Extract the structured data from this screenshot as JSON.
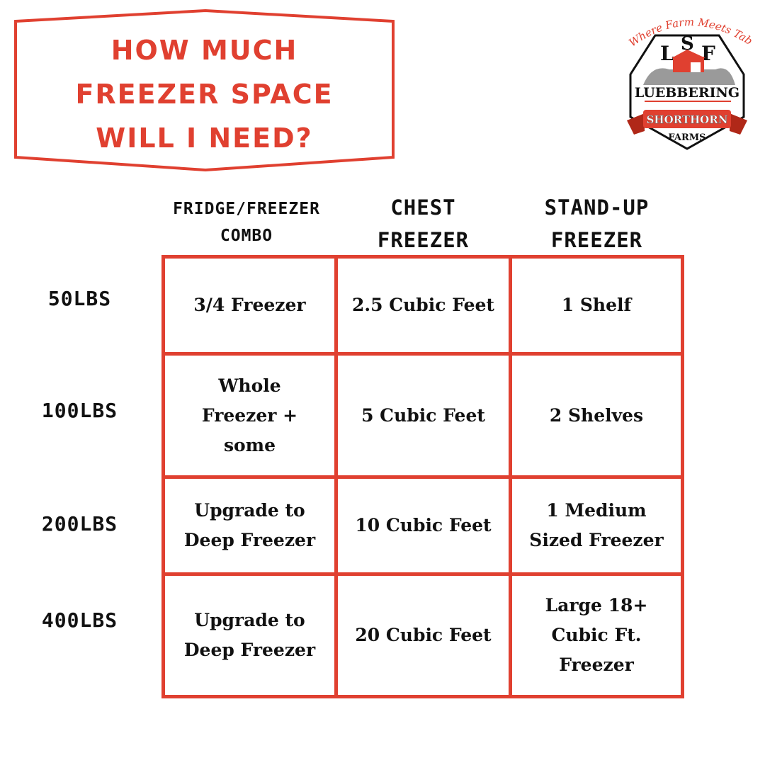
{
  "header": {
    "title_lines": [
      "HOW MUCH",
      "FREEZER SPACE",
      "WILL I NEED?"
    ]
  },
  "logo": {
    "tagline": "Where Farm Meets Table",
    "initials": [
      "L",
      "S",
      "F"
    ],
    "name": "LUEBBERING",
    "ribbon": "SHORTHORN",
    "sub": "FARMS"
  },
  "colors": {
    "accent": "#e04030",
    "text": "#111111",
    "logo_gray": "#9a9a9a"
  },
  "table": {
    "columns": [
      {
        "lines": [
          "FRIDGE/FREEZER",
          "COMBO"
        ]
      },
      {
        "lines": [
          "CHEST",
          "FREEZER"
        ]
      },
      {
        "lines": [
          "STAND-UP",
          "FREEZER"
        ]
      }
    ],
    "rows": [
      {
        "label": "50LBS",
        "cells": [
          "3/4 Freezer",
          "2.5 Cubic Feet",
          "1 Shelf"
        ]
      },
      {
        "label": "100LBS",
        "cells": [
          "Whole\nFreezer +\nsome",
          "5 Cubic Feet",
          "2 Shelves"
        ]
      },
      {
        "label": "200LBS",
        "cells": [
          "Upgrade to\nDeep Freezer",
          "10 Cubic Feet",
          "1 Medium\nSized Freezer"
        ]
      },
      {
        "label": "400LBS",
        "cells": [
          "Upgrade to\nDeep Freezer",
          "20 Cubic Feet",
          "Large 18+\nCubic Ft.\nFreezer"
        ]
      }
    ]
  }
}
